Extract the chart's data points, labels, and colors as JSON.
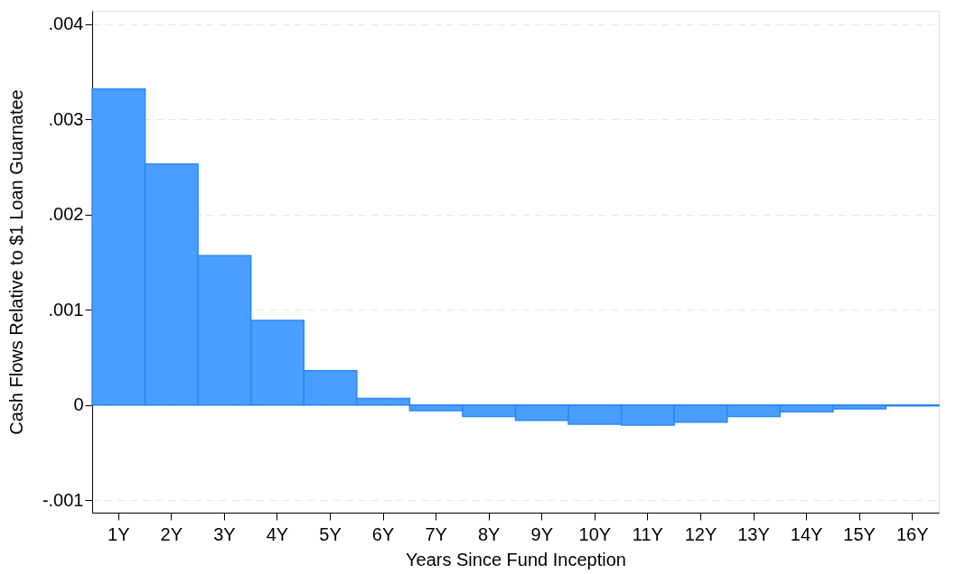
{
  "chart_data": {
    "type": "bar",
    "xlabel": "Years Since Fund Inception",
    "ylabel": "Cash Flows  Relative to $1 Loan Guarnatee",
    "categories": [
      "1Y",
      "2Y",
      "3Y",
      "4Y",
      "5Y",
      "6Y",
      "7Y",
      "8Y",
      "9Y",
      "10Y",
      "11Y",
      "12Y",
      "13Y",
      "14Y",
      "15Y",
      "16Y"
    ],
    "values": [
      0.00332,
      0.00253,
      0.00157,
      0.00089,
      0.00036,
      7e-05,
      -6e-05,
      -0.00012,
      -0.00016,
      -0.0002,
      -0.00021,
      -0.00018,
      -0.00012,
      -7e-05,
      -4e-05,
      -1e-05
    ],
    "color": "#4a9eff",
    "ylim": [
      -0.00113,
      0.00414
    ],
    "yticks": [
      {
        "value": -0.001,
        "label": "-.001"
      },
      {
        "value": 0,
        "label": "0"
      },
      {
        "value": 0.001,
        "label": ".001"
      },
      {
        "value": 0.002,
        "label": ".002"
      },
      {
        "value": 0.003,
        "label": ".003"
      },
      {
        "value": 0.004,
        "label": ".004"
      }
    ],
    "grid": "y"
  }
}
